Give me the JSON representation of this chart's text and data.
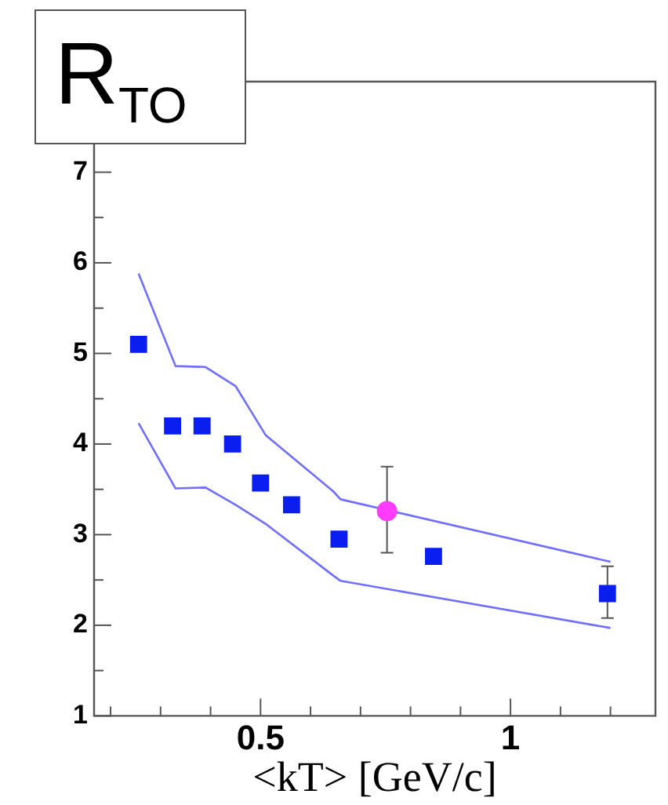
{
  "chart_data": {
    "type": "scatter",
    "title": "R$_{TO}$",
    "xlabel": "<kT> [GeV/c]",
    "xlim": [
      0.167,
      1.29
    ],
    "ylim": [
      1,
      8
    ],
    "xticks": [
      {
        "value": 0.2,
        "label": null
      },
      {
        "value": 0.3,
        "label": null
      },
      {
        "value": 0.4,
        "label": null
      },
      0.5,
      {
        "value": 0.6,
        "label": null
      },
      {
        "value": 0.7,
        "label": null
      },
      {
        "value": 0.8,
        "label": null
      },
      {
        "value": 0.9,
        "label": null
      },
      1,
      {
        "value": 1.1,
        "label": null
      },
      {
        "value": 1.2,
        "label": null
      }
    ],
    "yticks": [
      1,
      {
        "value": 1.5,
        "label": null
      },
      2,
      {
        "value": 2.5,
        "label": null
      },
      3,
      {
        "value": 3.5,
        "label": null
      },
      4,
      {
        "value": 4.5,
        "label": null
      },
      5,
      {
        "value": 5.5,
        "label": null
      },
      6,
      {
        "value": 6.5,
        "label": null
      },
      7,
      {
        "value": 7.5,
        "label": null
      }
    ],
    "grid": false,
    "legend": false,
    "series": [
      {
        "marker": "square",
        "color": "#0a1ef0",
        "x": [
          0.256,
          0.324,
          0.383,
          0.444,
          0.5,
          0.562,
          0.657,
          0.846,
          1.194
        ],
        "values": [
          5.1,
          4.2,
          4.2,
          4.0,
          3.57,
          3.33,
          2.95,
          2.76,
          2.35
        ],
        "errors": [
          null,
          null,
          null,
          null,
          null,
          null,
          null,
          null,
          [
            2.08,
            2.65
          ]
        ]
      },
      {
        "marker": "circle",
        "color": "#ff3cff",
        "x": [
          0.753
        ],
        "values": [
          3.26
        ],
        "errors": [
          [
            2.8,
            3.75
          ]
        ]
      },
      {
        "type": "line",
        "marker": "none",
        "color": "#6f6fff",
        "x": [
          0.256,
          0.33,
          0.39,
          0.45,
          0.51,
          0.645,
          0.66,
          1.2
        ],
        "values": [
          5.88,
          4.86,
          4.85,
          4.64,
          4.1,
          3.48,
          3.39,
          2.7
        ]
      },
      {
        "type": "line",
        "marker": "none",
        "color": "#6f6fff",
        "x": [
          0.256,
          0.33,
          0.39,
          0.45,
          0.51,
          0.645,
          0.66,
          1.2
        ],
        "values": [
          4.23,
          3.51,
          3.52,
          3.33,
          3.12,
          2.55,
          2.49,
          1.97
        ]
      }
    ]
  }
}
